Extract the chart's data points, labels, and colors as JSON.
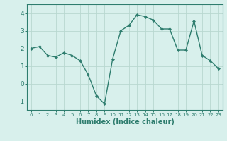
{
  "x": [
    0,
    1,
    2,
    3,
    4,
    5,
    6,
    7,
    8,
    9,
    10,
    11,
    12,
    13,
    14,
    15,
    16,
    17,
    18,
    19,
    20,
    21,
    22,
    23
  ],
  "y": [
    2.0,
    2.1,
    1.6,
    1.5,
    1.75,
    1.6,
    1.3,
    0.5,
    -0.7,
    -1.15,
    1.4,
    3.0,
    3.3,
    3.9,
    3.8,
    3.6,
    3.1,
    3.1,
    1.9,
    1.9,
    3.55,
    1.6,
    1.3,
    0.85
  ],
  "line_color": "#2e7d6e",
  "marker": "D",
  "marker_size": 2.0,
  "linewidth": 1.0,
  "bg_color": "#d8f0ec",
  "grid_color": "#b8d8d0",
  "xlabel": "Humidex (Indice chaleur)",
  "xlabel_fontsize": 7.0,
  "ylim": [
    -1.5,
    4.5
  ],
  "xlim": [
    -0.5,
    23.5
  ],
  "yticks": [
    -1,
    0,
    1,
    2,
    3,
    4
  ],
  "xticks": [
    0,
    1,
    2,
    3,
    4,
    5,
    6,
    7,
    8,
    9,
    10,
    11,
    12,
    13,
    14,
    15,
    16,
    17,
    18,
    19,
    20,
    21,
    22,
    23
  ],
  "xtick_fontsize": 5.0,
  "ytick_fontsize": 6.5
}
